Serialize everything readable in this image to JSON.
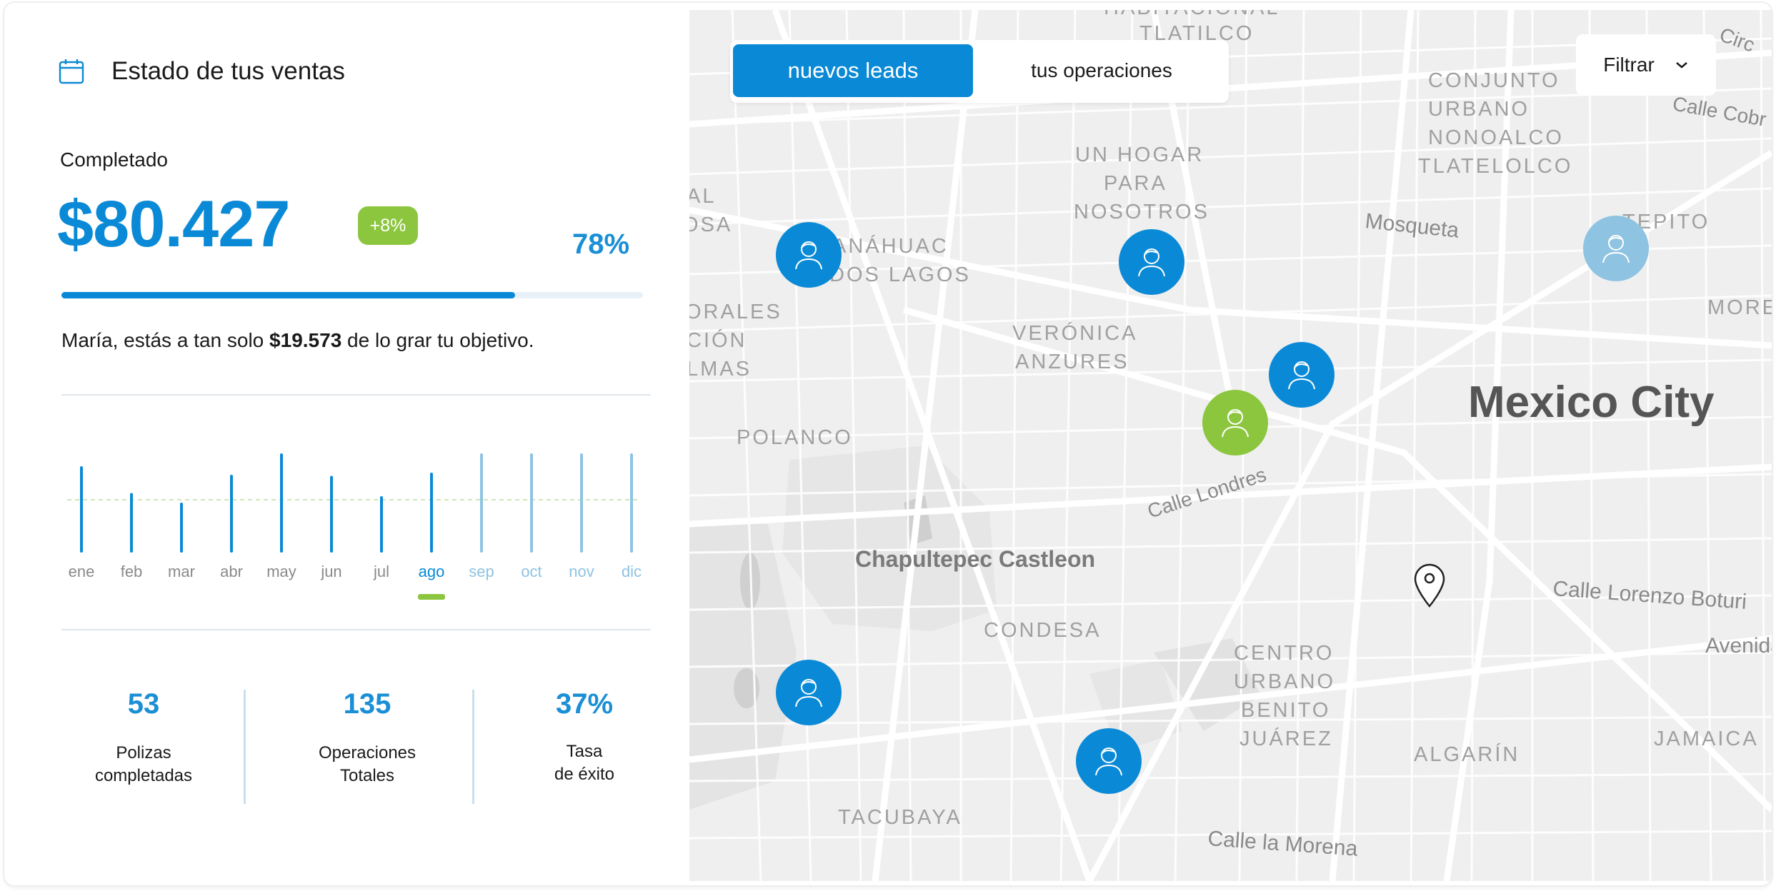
{
  "header": {
    "title": "Estado de tus ventas",
    "icon": "calendar-icon"
  },
  "sales": {
    "completed_label": "Completado",
    "amount": "$80.427",
    "change_badge": "+8%",
    "progress_percent": "78%",
    "progress_fraction": 0.78
  },
  "message": {
    "prefix": "María, estás a tan solo ",
    "amount": "$19.573",
    "suffix": " de lo grar tu objetivo."
  },
  "chart_data": {
    "type": "bar",
    "categories": [
      "ene",
      "feb",
      "mar",
      "abr",
      "may",
      "jun",
      "jul",
      "ago",
      "sep",
      "oct",
      "nov",
      "dic"
    ],
    "values": [
      78,
      53,
      44,
      70,
      90,
      69,
      50,
      72,
      90,
      90,
      90,
      90
    ],
    "ylim": [
      0,
      100
    ],
    "reference_line": 48,
    "selected": "ago",
    "colors": {
      "past": "#0a8ad6",
      "future": "#8ec3e2",
      "reference": "#cfe3b8",
      "selected_marker": "#8cc63f"
    }
  },
  "stats": [
    {
      "value": "53",
      "label_line1": "Polizas",
      "label_line2": "completadas"
    },
    {
      "value": "135",
      "label_line1": "Operaciones",
      "label_line2": "Totales"
    },
    {
      "value": "37%",
      "label_line1": "Tasa",
      "label_line2": "de éxito"
    }
  ],
  "map": {
    "tabs": {
      "active": "nuevos leads",
      "inactive": "tus operaciones"
    },
    "filter_label": "Filtrar",
    "labels": {
      "city": "Mexico City",
      "castle": "Chapultepec Castleon",
      "mosqueta": "Mosqueta",
      "londres": "Calle Londres",
      "lorenzo": "Calle Lorenzo Boturi",
      "avenida": "Avenida",
      "morena": "Calle la Morena",
      "cobre": "Calle Cobr",
      "circ": "Circ",
      "hogar1": "UN HOGAR",
      "hogar2": "PARA",
      "hogar3": "NOSOTROS",
      "conj1": "CONJUNTO",
      "conj2": "URBANO",
      "conj3": "NONOALCO",
      "conj4": "TLATELOLCO",
      "trad1": "HABITACIONAL",
      "trad2": "TLATILCO",
      "anah1": "ANÁHUAC",
      "anah2": "DOS LAGOS",
      "ver1": "VERÓNICA",
      "ver2": "ANZURES",
      "polanco": "POLANCO",
      "cond": "CONDESA",
      "cen1": "CENTRO",
      "cen2": "URBANO",
      "cen3": "BENITO",
      "cen4": "JUÁREZ",
      "algarin": "ALGARÍN",
      "jamaica": "JAMAICA",
      "tacubaya": "TACUBAYA",
      "tepito": "TEPITO",
      "more": "MORE",
      "al": "AL",
      "osa": "OSA",
      "orales": "ORALES",
      "cion": "CIÓN",
      "lmas": "LMAS"
    }
  }
}
